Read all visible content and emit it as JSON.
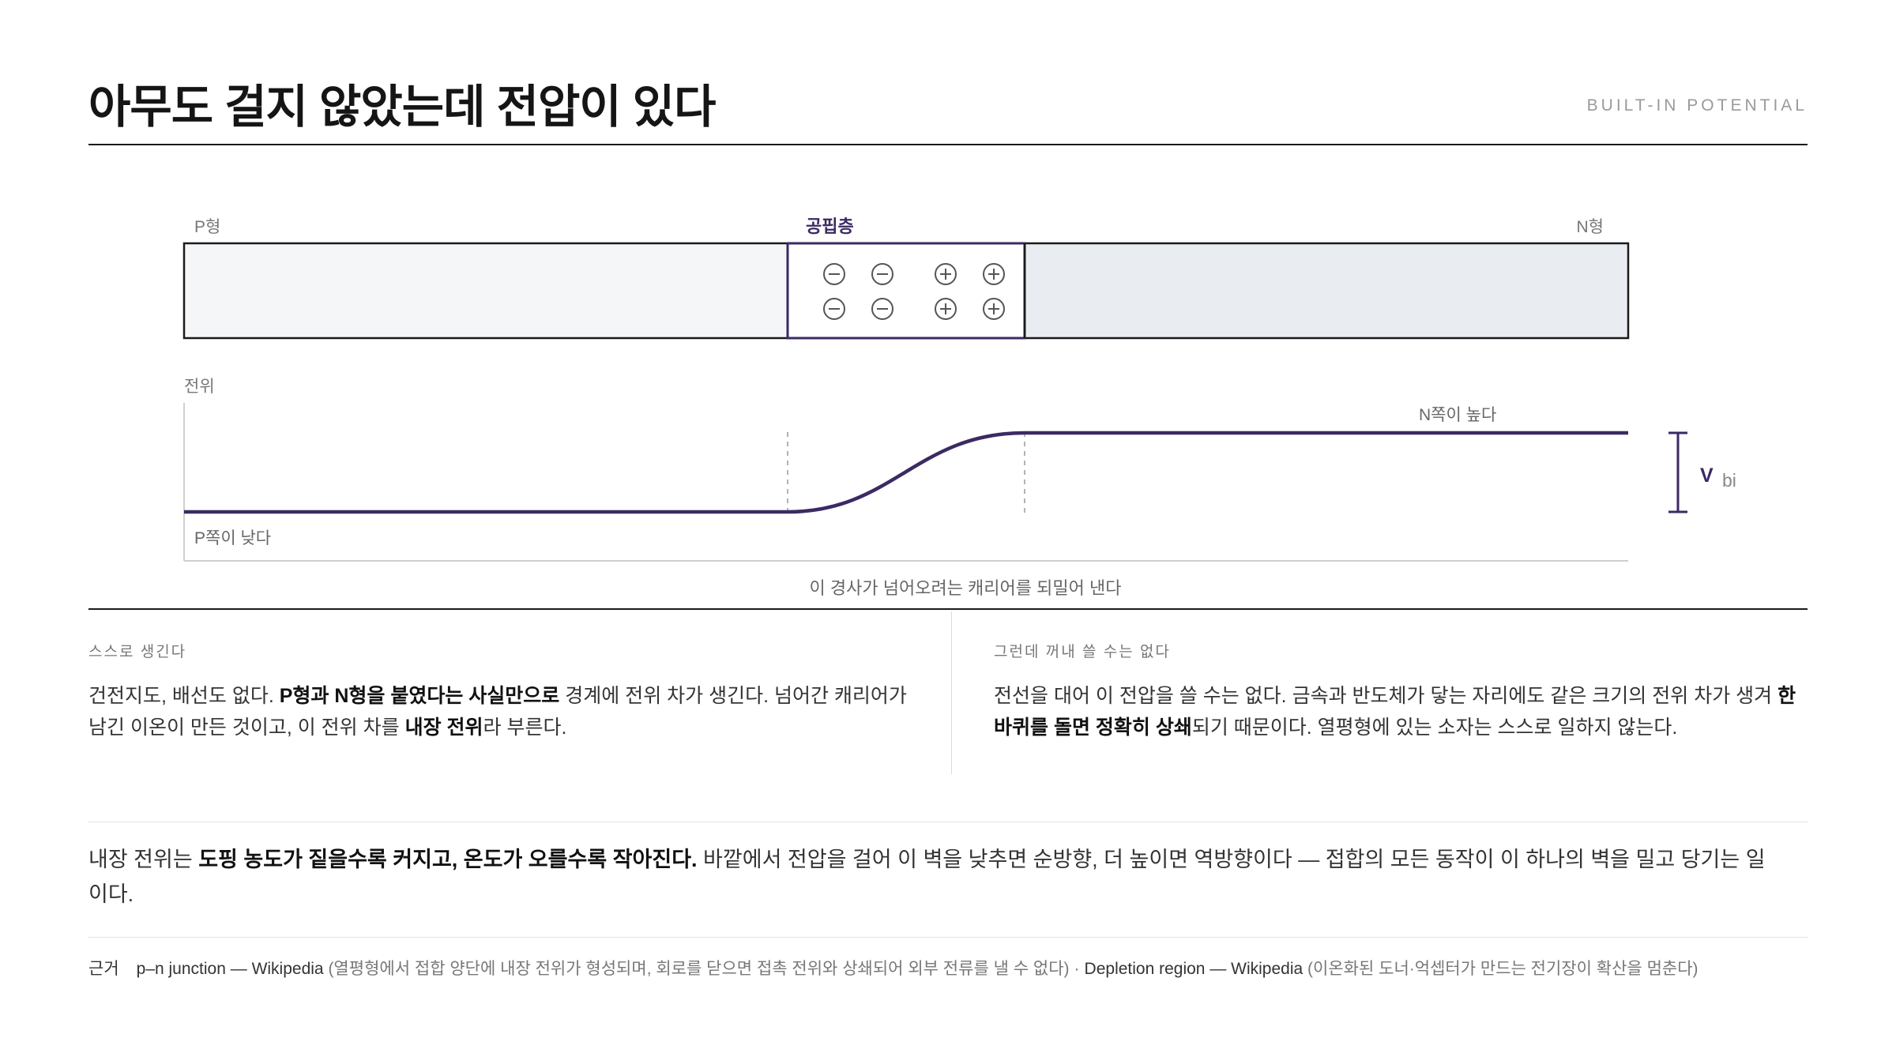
{
  "header": {
    "title": "아무도 걸지 않았는데 전압이 있다",
    "eyebrow": "BUILT-IN POTENTIAL"
  },
  "diagram": {
    "bar": {
      "p_label": "P형",
      "depletion_label": "공핍층",
      "n_label": "N형",
      "negative_ions": 4,
      "positive_ions": 4
    },
    "potential": {
      "axis_label": "전위",
      "high_label": "N쪽이 높다",
      "low_label": "P쪽이 낮다",
      "vbi_main": "V",
      "vbi_sub": "bi",
      "caption": "이 경사가 넘어오려는 캐리어를 되밀어 낸다"
    },
    "colors": {
      "accent": "#3b2a63",
      "p_fill": "#f5f6f8",
      "n_fill": "#e9ecf1",
      "ion_stroke": "#555555"
    }
  },
  "left": {
    "label": "스스로 생긴다",
    "t1": "건전지도, 배선도 없다. ",
    "b1": "P형과 N형을 붙였다는 사실만으로",
    "t2": " 경계에 전위 차가 생긴다. 넘어간 캐리어가 남긴 이온이 만든 것이고, 이 전위 차를 ",
    "b2": "내장 전위",
    "t3": "라 부른다."
  },
  "right": {
    "label": "그런데 꺼내 쓸 수는 없다",
    "t1": "전선을 대어 이 전압을 쓸 수는 없다. 금속과 반도체가 닿는 자리에도 같은 크기의 전위 차가 생겨 ",
    "b1": "한 바퀴를 돌면 정확히 상쇄",
    "t2": "되기 때문이다. 열평형에 있는 소자는 스스로 일하지 않는다."
  },
  "summary": {
    "t1": "내장 전위는 ",
    "b1": "도핑 농도가 짙을수록 커지고, 온도가 오를수록 작아진다.",
    "t2": " 바깥에서 전압을 걸어 이 벽을 낮추면 순방향, 더 높이면 역방향이다 — 접합의 모든 동작이 이 하나의 벽을 밀고 당기는 일이다."
  },
  "sources": {
    "label": "근거",
    "s1": "p–n junction — Wikipedia",
    "n1": " (열평형에서 접합 양단에 내장 전위가 형성되며, 회로를 닫으면 접촉 전위와 상쇄되어 외부 전류를 낼 수 없다)",
    "sep": "·",
    "s2": "Depletion region — Wikipedia",
    "n2": " (이온화된 도너·억셉터가 만드는 전기장이 확산을 멈춘다)"
  }
}
